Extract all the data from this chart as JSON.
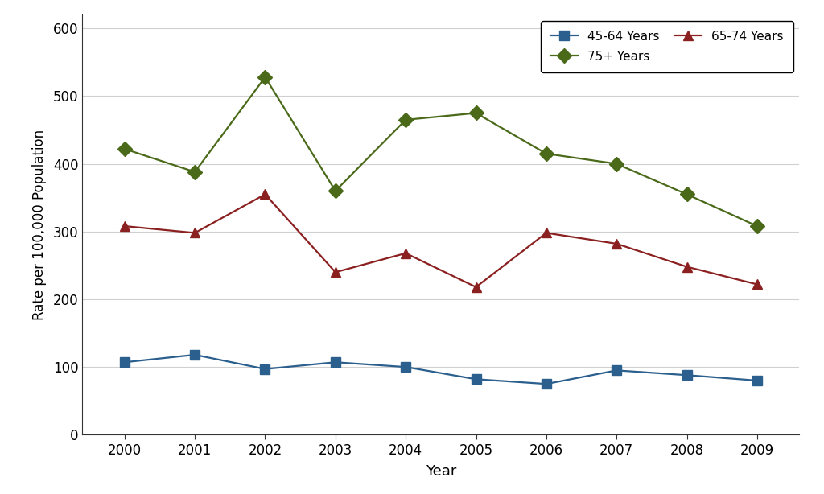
{
  "years": [
    2000,
    2001,
    2002,
    2003,
    2004,
    2005,
    2006,
    2007,
    2008,
    2009
  ],
  "series_order": [
    "45-64 Years",
    "65-74 Years",
    "75+ Years"
  ],
  "series": {
    "45-64 Years": {
      "values": [
        107,
        118,
        97,
        107,
        100,
        82,
        75,
        95,
        88,
        80
      ],
      "color": "#2b5f8e",
      "marker": "s",
      "markersize": 8
    },
    "65-74 Years": {
      "values": [
        308,
        298,
        355,
        240,
        268,
        218,
        298,
        282,
        248,
        222
      ],
      "color": "#8b2020",
      "marker": "^",
      "markersize": 9
    },
    "75+ Years": {
      "values": [
        422,
        388,
        528,
        360,
        465,
        475,
        415,
        400,
        355,
        308
      ],
      "color": "#4a6a1a",
      "marker": "D",
      "markersize": 9
    }
  },
  "xlabel": "Year",
  "ylabel": "Rate per 100,000 Population",
  "ylim": [
    0,
    620
  ],
  "yticks": [
    0,
    100,
    200,
    300,
    400,
    500,
    600
  ],
  "xlim": [
    1999.4,
    2009.6
  ],
  "background_color": "#ffffff",
  "grid_color": "#d0d0d0",
  "legend_order": [
    "45-64 Years",
    "75+ Years",
    "65-74 Years"
  ]
}
